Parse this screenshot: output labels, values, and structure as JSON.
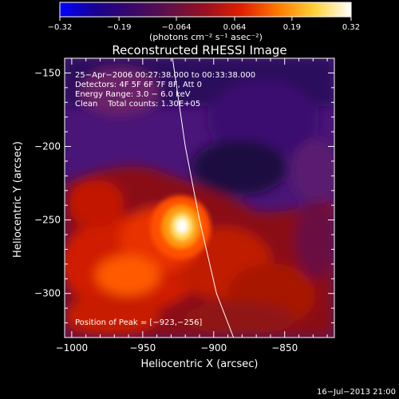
{
  "chart_data": {
    "type": "heatmap",
    "title": "Reconstructed RHESSI Image",
    "xlabel": "Heliocentric X (arcsec)",
    "ylabel": "Heliocentric Y (arcsec)",
    "xlim": [
      -1005,
      -815
    ],
    "ylim": [
      -330,
      -140
    ],
    "x_ticks": [
      -1000,
      -950,
      -900,
      -850
    ],
    "y_ticks": [
      -150,
      -200,
      -250,
      -300
    ],
    "x_tick_labels": [
      "−1000",
      "−950",
      "−900",
      "−850"
    ],
    "y_tick_labels": [
      "−150",
      "−200",
      "−250",
      "−300"
    ],
    "colorbar": {
      "ticks": [
        -0.32,
        -0.19,
        -0.064,
        0.064,
        0.19,
        0.32
      ],
      "tick_labels": [
        "−0.32",
        "−0.19",
        "−0.064",
        "0.064",
        "0.19",
        "0.32"
      ],
      "units": "(photons cm⁻² s⁻¹ asec⁻²)",
      "colors": [
        "#0000ff",
        "#1a0090",
        "#3a0868",
        "#601048",
        "#9a1020",
        "#e02000",
        "#ff7a00",
        "#ffd23a",
        "#ffffff"
      ]
    },
    "annotations": [
      "25−Apr−2006 00:27:38.000 to 00:33:38.000",
      "Detectors: 4F 5F 6F 7F 8F, Att 0",
      "Energy Range: 3.0 − 6.0 keV",
      "Clean    Total counts: 1.30E+05"
    ],
    "peak_label": "Position of Peak = [−923,−256]",
    "peak": [
      -923,
      -256
    ],
    "limb_curve": [
      [
        -929,
        -140
      ],
      [
        -920,
        -200
      ],
      [
        -910,
        -250
      ],
      [
        -898,
        -300
      ],
      [
        -886,
        -330
      ]
    ],
    "footer": "16−Jul−2013 21:00"
  }
}
